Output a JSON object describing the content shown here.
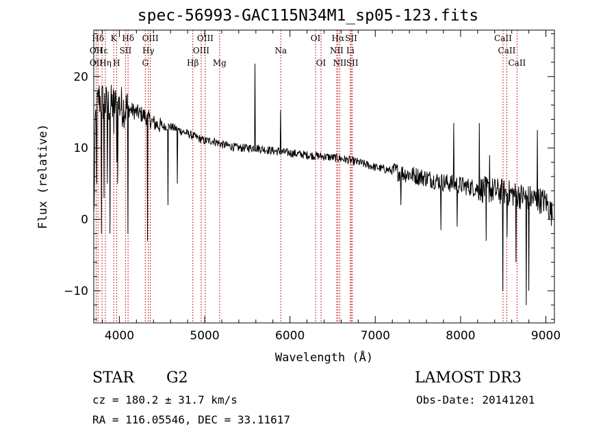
{
  "title": "spec-56993-GAC115N34M1_sp05-123.fits",
  "info": {
    "object_type": "STAR",
    "subclass": "G2",
    "survey": "LAMOST DR3",
    "cz_text": "cz = 180.2 ± 31.7 km/s",
    "obs_date_text": "Obs-Date: 20141201",
    "radec_text": "RA = 116.05546, DEC =  33.11617"
  },
  "chart_data": {
    "type": "line",
    "title": "spec-56993-GAC115N34M1_sp05-123.fits",
    "xlabel": "Wavelength (Å)",
    "ylabel": "Flux (relative)",
    "xlim": [
      3700,
      9100
    ],
    "ylim": [
      -14.5,
      26.5
    ],
    "x_ticks": [
      4000,
      5000,
      6000,
      7000,
      8000,
      9000
    ],
    "y_ticks": [
      -10,
      0,
      10,
      20
    ],
    "grid": false,
    "line_color": "#000000",
    "marker_color": "#cc2222",
    "continuum": [
      [
        3700,
        0
      ],
      [
        3720,
        14
      ],
      [
        3760,
        17
      ],
      [
        3800,
        16.5
      ],
      [
        3850,
        16
      ],
      [
        3900,
        16
      ],
      [
        4000,
        16
      ],
      [
        4100,
        15.5
      ],
      [
        4200,
        15
      ],
      [
        4300,
        14.5
      ],
      [
        4400,
        13.5
      ],
      [
        4500,
        13
      ],
      [
        4600,
        13
      ],
      [
        4700,
        12.5
      ],
      [
        4800,
        12
      ],
      [
        4900,
        11.5
      ],
      [
        5000,
        11
      ],
      [
        5100,
        11
      ],
      [
        5200,
        10.5
      ],
      [
        5400,
        10
      ],
      [
        5600,
        10
      ],
      [
        5800,
        9.6
      ],
      [
        6000,
        9.3
      ],
      [
        6200,
        9
      ],
      [
        6400,
        8.8
      ],
      [
        6600,
        8.5
      ],
      [
        6800,
        8
      ],
      [
        7000,
        7.3
      ],
      [
        7200,
        6.8
      ],
      [
        7400,
        6.3
      ],
      [
        7600,
        5.8
      ],
      [
        7800,
        5.2
      ],
      [
        8000,
        4.8
      ],
      [
        8200,
        4.3
      ],
      [
        8400,
        4
      ],
      [
        8600,
        3.6
      ],
      [
        8800,
        3
      ],
      [
        9000,
        2.5
      ],
      [
        9080,
        0.5
      ]
    ],
    "features": [
      [
        3735,
        5
      ],
      [
        3790,
        -2
      ],
      [
        3820,
        3
      ],
      [
        3860,
        5
      ],
      [
        3890,
        -2
      ],
      [
        3934,
        12
      ],
      [
        3968,
        8
      ],
      [
        3980,
        5
      ],
      [
        4102,
        -2
      ],
      [
        4330,
        -3
      ],
      [
        4570,
        2
      ],
      [
        4680,
        5
      ],
      [
        5590,
        21.8
      ],
      [
        5890,
        15.3
      ],
      [
        7300,
        2
      ],
      [
        7770,
        -1.5
      ],
      [
        7920,
        13.5
      ],
      [
        7960,
        -1
      ],
      [
        8220,
        13.5
      ],
      [
        8300,
        -3
      ],
      [
        8340,
        9
      ],
      [
        8495,
        -10
      ],
      [
        8545,
        -2.5
      ],
      [
        8650,
        -6
      ],
      [
        8770,
        -12
      ],
      [
        8800,
        -10
      ],
      [
        8900,
        12.5
      ]
    ],
    "lines": [
      {
        "label": "Hδ",
        "x": 3750,
        "row": 0
      },
      {
        "label": "OII",
        "x": 3728,
        "row": 1
      },
      {
        "label": "OII",
        "x": 3728,
        "row": 2
      },
      {
        "label": "Hε",
        "x": 3797,
        "row": 1
      },
      {
        "label": "Hη",
        "x": 3836,
        "row": 2
      },
      {
        "label": "K",
        "x": 3934,
        "row": 0
      },
      {
        "label": "H",
        "x": 3968,
        "row": 2
      },
      {
        "label": "Hδ",
        "x": 4102,
        "row": 0
      },
      {
        "label": "SII",
        "x": 4072,
        "row": 1
      },
      {
        "label": "OIII",
        "x": 4363,
        "row": 0
      },
      {
        "label": "Hγ",
        "x": 4340,
        "row": 1
      },
      {
        "label": "G",
        "x": 4304,
        "row": 2
      },
      {
        "label": "Hβ",
        "x": 4861,
        "row": 2
      },
      {
        "label": "OIII",
        "x": 5007,
        "row": 0
      },
      {
        "label": "OIII",
        "x": 4959,
        "row": 1
      },
      {
        "label": "Mg",
        "x": 5175,
        "row": 2
      },
      {
        "label": "Na",
        "x": 5893,
        "row": 1
      },
      {
        "label": "OI",
        "x": 6300,
        "row": 0
      },
      {
        "label": "OI",
        "x": 6364,
        "row": 2
      },
      {
        "label": "Hα",
        "x": 6563,
        "row": 0
      },
      {
        "label": "NII",
        "x": 6548,
        "row": 1
      },
      {
        "label": "NII",
        "x": 6584,
        "row": 2
      },
      {
        "label": "SII",
        "x": 6717,
        "row": 0
      },
      {
        "label": "Li",
        "x": 6708,
        "row": 1
      },
      {
        "label": "SII",
        "x": 6731,
        "row": 2
      },
      {
        "label": "CaII",
        "x": 8498,
        "row": 0
      },
      {
        "label": "CaII",
        "x": 8542,
        "row": 1
      },
      {
        "label": "CaII",
        "x": 8662,
        "row": 2
      }
    ]
  }
}
